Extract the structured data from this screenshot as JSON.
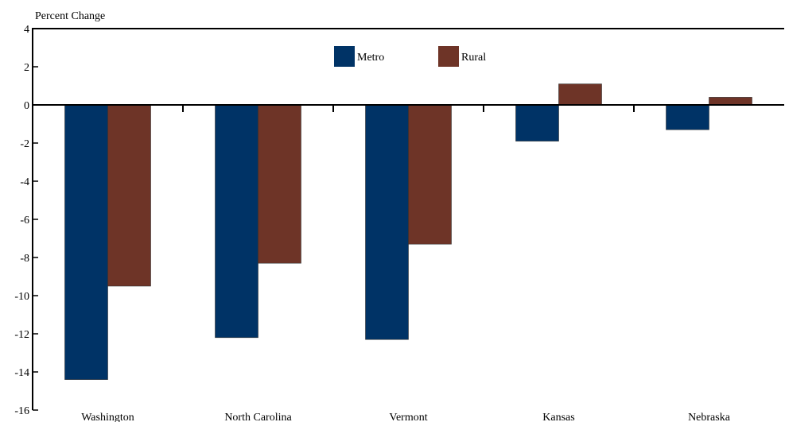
{
  "chart_data": {
    "type": "bar",
    "title": "",
    "ylabel": "Percent Change",
    "xlabel": "",
    "categories": [
      "Washington",
      "North Carolina",
      "Vermont",
      "Kansas",
      "Nebraska"
    ],
    "series": [
      {
        "name": "Metro",
        "color": "#003366",
        "values": [
          -14.4,
          -12.2,
          -12.3,
          -1.9,
          -1.3
        ]
      },
      {
        "name": "Rural",
        "color": "#6e3427",
        "values": [
          -9.5,
          -8.3,
          -7.3,
          1.1,
          0.4
        ]
      }
    ],
    "ylim": [
      -16,
      4
    ],
    "yticks": [
      4,
      2,
      0,
      -2,
      -4,
      -6,
      -8,
      -10,
      -12,
      -14,
      -16
    ],
    "ytick_labels": [
      "4",
      "2",
      "0",
      "-2",
      "-4",
      "-6",
      "-8",
      "-10",
      "-12",
      "-14",
      "-16"
    ],
    "legend_position": "top-center",
    "grid": false
  }
}
